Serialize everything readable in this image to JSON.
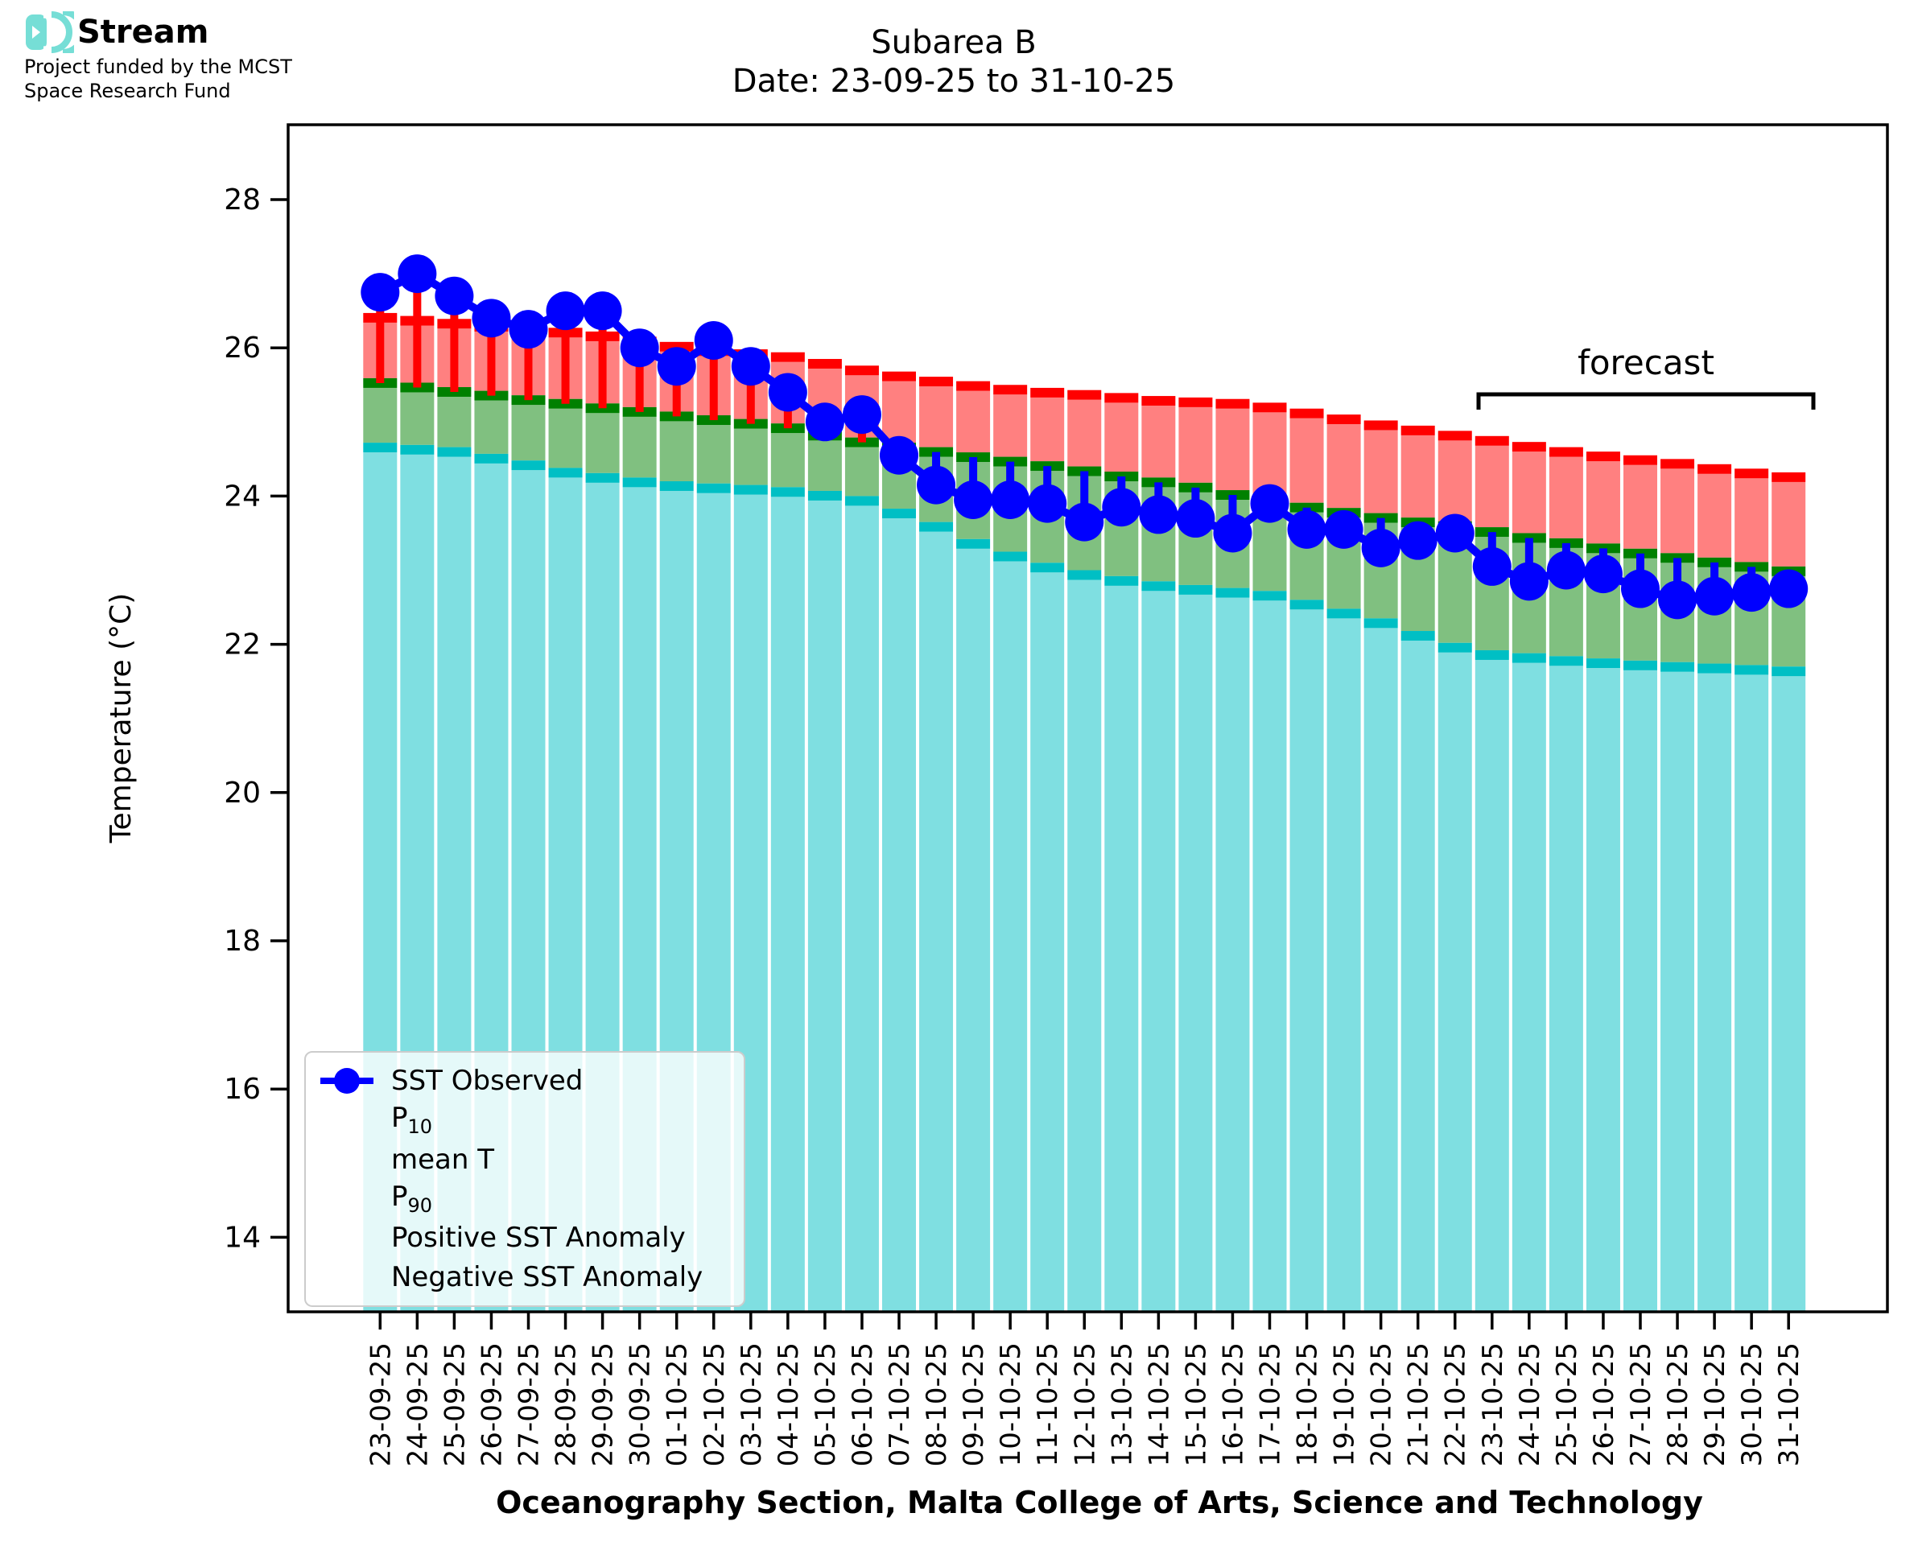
{
  "logo": {
    "brand": "Stream",
    "funding_line1": "Project funded by the MCST",
    "funding_line2": "Space Research Fund",
    "icon_color": "#76DED6"
  },
  "title": {
    "line1": "Subarea B",
    "line2": "Date: 23-09-25 to 31-10-25"
  },
  "axes": {
    "y_label": "Temperature (°C)",
    "x_label": "Oceanography Section, Malta College of Arts, Science and Technology",
    "y_ticks": [
      28,
      26,
      24,
      22,
      20,
      18,
      16,
      14
    ]
  },
  "annotations": {
    "forecast": {
      "label": "forecast",
      "start_date": "23-10-25",
      "end_date": "31-10-25"
    }
  },
  "legend": {
    "items": [
      {
        "label": "SST Observed",
        "swatch": "line-dot",
        "color": "#0000FF"
      },
      {
        "label_main": "P",
        "label_sub": "10",
        "swatch": "patch",
        "color": "#7FDFE1"
      },
      {
        "label": "mean T",
        "swatch": "patch",
        "color": "#80C080"
      },
      {
        "label_main": "P",
        "label_sub": "90",
        "swatch": "patch",
        "color": "#FF8080"
      },
      {
        "label": "Positive SST Anomaly",
        "swatch": "patch",
        "color": "#FF0000"
      },
      {
        "label": "Negative SST Anomaly",
        "swatch": "patch",
        "color": "#0000FF"
      }
    ]
  },
  "colors": {
    "p10_fill": "#7FDFE1",
    "p10_line": "#00BFC4",
    "mean_fill": "#80C080",
    "mean_line": "#008000",
    "p90_fill": "#FF8080",
    "p90_line": "#FF0000",
    "observed": "#0000FF",
    "positive_anomaly": "#FF0000",
    "negative_anomaly": "#0000FF"
  },
  "chart_data": {
    "type": "bar",
    "title": "Subarea B — Date: 23-09-25 to 31-10-25",
    "xlabel": "Oceanography Section, Malta College of Arts, Science and Technology",
    "ylabel": "Temperature (°C)",
    "ylim": [
      13.0,
      29.0
    ],
    "yticks": [
      14,
      16,
      18,
      20,
      22,
      24,
      26,
      28
    ],
    "grid": false,
    "legend_position": "lower left",
    "forecast_span": {
      "label": "forecast",
      "start_date": "23-10-25",
      "end_date": "31-10-25"
    },
    "categories": [
      "23-09-25",
      "24-09-25",
      "25-09-25",
      "26-09-25",
      "27-09-25",
      "28-09-25",
      "29-09-25",
      "30-09-25",
      "01-10-25",
      "02-10-25",
      "03-10-25",
      "04-10-25",
      "05-10-25",
      "06-10-25",
      "07-10-25",
      "08-10-25",
      "09-10-25",
      "10-10-25",
      "11-10-25",
      "12-10-25",
      "13-10-25",
      "14-10-25",
      "15-10-25",
      "16-10-25",
      "17-10-25",
      "18-10-25",
      "19-10-25",
      "20-10-25",
      "21-10-25",
      "22-10-25",
      "23-10-25",
      "24-10-25",
      "25-10-25",
      "26-10-25",
      "27-10-25",
      "28-10-25",
      "29-10-25",
      "30-10-25",
      "31-10-25"
    ],
    "series": [
      {
        "name": "SST Observed",
        "type": "line+markers",
        "values": [
          26.75,
          27.0,
          26.7,
          26.4,
          26.25,
          26.5,
          26.5,
          26.0,
          25.75,
          26.1,
          25.75,
          25.4,
          25.0,
          25.1,
          24.55,
          24.15,
          23.95,
          23.95,
          23.9,
          23.65,
          23.85,
          23.75,
          23.7,
          23.5,
          23.9,
          23.55,
          23.55,
          23.3,
          23.4,
          23.5,
          23.05,
          22.85,
          23.0,
          22.95,
          22.75,
          22.6,
          22.65,
          22.7,
          22.75
        ]
      },
      {
        "name": "P90",
        "type": "bar",
        "values": [
          26.47,
          26.43,
          26.39,
          26.35,
          26.31,
          26.27,
          26.22,
          26.15,
          26.08,
          26.02,
          25.98,
          25.94,
          25.85,
          25.76,
          25.68,
          25.61,
          25.55,
          25.5,
          25.46,
          25.43,
          25.39,
          25.35,
          25.33,
          25.31,
          25.26,
          25.18,
          25.1,
          25.02,
          24.95,
          24.88,
          24.81,
          24.73,
          24.66,
          24.6,
          24.55,
          24.5,
          24.43,
          24.37,
          24.32
        ]
      },
      {
        "name": "mean T",
        "type": "bar",
        "values": [
          25.59,
          25.53,
          25.47,
          25.42,
          25.36,
          25.31,
          25.25,
          25.2,
          25.14,
          25.09,
          25.04,
          24.98,
          24.88,
          24.79,
          24.72,
          24.66,
          24.59,
          24.53,
          24.47,
          24.4,
          24.33,
          24.25,
          24.18,
          24.08,
          23.98,
          23.91,
          23.84,
          23.77,
          23.71,
          23.66,
          23.58,
          23.5,
          23.43,
          23.36,
          23.29,
          23.23,
          23.17,
          23.11,
          23.05
        ]
      },
      {
        "name": "P10",
        "type": "bar",
        "values": [
          24.72,
          24.69,
          24.66,
          24.57,
          24.48,
          24.38,
          24.31,
          24.25,
          24.2,
          24.17,
          24.15,
          24.12,
          24.07,
          24.0,
          23.83,
          23.65,
          23.42,
          23.25,
          23.1,
          23.0,
          22.92,
          22.85,
          22.8,
          22.76,
          22.72,
          22.6,
          22.48,
          22.35,
          22.18,
          22.02,
          21.92,
          21.88,
          21.84,
          21.81,
          21.78,
          21.76,
          21.74,
          21.72,
          21.7
        ]
      }
    ]
  }
}
